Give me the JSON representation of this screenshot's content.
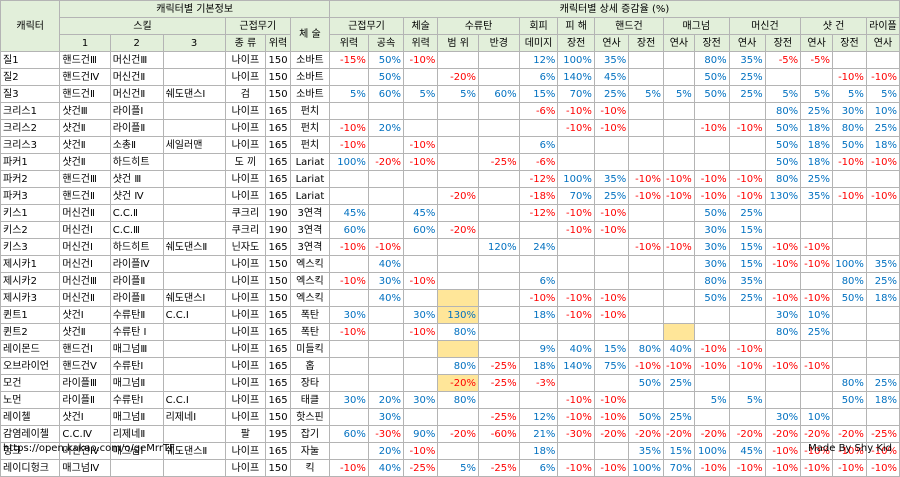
{
  "headers": {
    "basic_group": "캐릭터별 기본정보",
    "detail_group": "캐릭터별 상세 증감율 (%)",
    "character": "캐릭터",
    "skill": "스킬",
    "melee": "근접무기",
    "physique": "체 술",
    "sub_melee": "근접무기",
    "sub_physique": "체술",
    "sub_tumble": "수류탄",
    "sub_evade": "회피",
    "sub_damage": "피 해",
    "sub_handgun": "핸드건",
    "sub_magnum": "매그넘",
    "sub_machinegun": "머신건",
    "sub_shotgun": "샷 건",
    "sub_rifle": "라이플",
    "skill_cols": [
      "1",
      "2",
      "3"
    ],
    "melee_cols": [
      "종 류",
      "위력"
    ],
    "detail_cols": [
      "위력",
      "공속",
      "위력",
      "범 위",
      "반경",
      "데미지",
      "장전",
      "연사",
      "장전",
      "연사",
      "장전",
      "연사",
      "장전",
      "연사",
      "장전",
      "연사"
    ]
  },
  "rows": [
    {
      "name": "질1",
      "s1": "핸드건Ⅲ",
      "s2": "머신건Ⅲ",
      "s3": "",
      "mtype": "나이프",
      "mpow": "150",
      "phys": "소바트",
      "d": [
        "-15%",
        "50%",
        "-10%",
        "",
        "",
        "12%",
        "100%",
        "35%",
        "",
        "",
        "80%",
        "35%",
        "-5%",
        "-5%",
        "",
        ""
      ]
    },
    {
      "name": "질2",
      "s1": "핸드건Ⅳ",
      "s2": "머신건Ⅱ",
      "s3": "",
      "mtype": "나이프",
      "mpow": "150",
      "phys": "소바트",
      "d": [
        "",
        "50%",
        "",
        "-20%",
        "",
        "6%",
        "140%",
        "45%",
        "",
        "",
        "50%",
        "25%",
        "",
        "",
        "-10%",
        "-10%"
      ]
    },
    {
      "name": "질3",
      "s1": "핸드건Ⅱ",
      "s2": "머신건Ⅱ",
      "s3": "쉐도댄스Ⅰ",
      "mtype": "검",
      "mpow": "150",
      "phys": "소바트",
      "d": [
        "5%",
        "60%",
        "5%",
        "5%",
        "60%",
        "15%",
        "70%",
        "25%",
        "5%",
        "5%",
        "50%",
        "25%",
        "5%",
        "5%",
        "5%",
        "5%"
      ]
    },
    {
      "name": "크리스1",
      "s1": "샷건Ⅲ",
      "s2": "라이플Ⅰ",
      "s3": "",
      "mtype": "나이프",
      "mpow": "165",
      "phys": "펀치",
      "d": [
        "",
        "",
        "",
        "",
        "",
        "-6%",
        "-10%",
        "-10%",
        "",
        "",
        "",
        "",
        "80%",
        "25%",
        "30%",
        "10%"
      ]
    },
    {
      "name": "크리스2",
      "s1": "샷건Ⅱ",
      "s2": "라이플Ⅱ",
      "s3": "",
      "mtype": "나이프",
      "mpow": "165",
      "phys": "펀치",
      "d": [
        "-10%",
        "20%",
        "",
        "",
        "",
        "",
        "-10%",
        "-10%",
        "",
        "",
        "-10%",
        "-10%",
        "50%",
        "18%",
        "80%",
        "25%"
      ]
    },
    {
      "name": "크리스3",
      "s1": "샷건Ⅱ",
      "s2": "소총Ⅱ",
      "s3": "세일러맨",
      "mtype": "나이프",
      "mpow": "165",
      "phys": "펀치",
      "d": [
        "-10%",
        "",
        "-10%",
        "",
        "",
        "6%",
        "",
        "",
        "",
        "",
        "",
        "",
        "50%",
        "18%",
        "50%",
        "18%"
      ]
    },
    {
      "name": "파커1",
      "s1": "샷건Ⅱ",
      "s2": "하드히트",
      "s3": "",
      "mtype": "도 끼",
      "mpow": "165",
      "phys": "Lariat",
      "d": [
        "100%",
        "-20%",
        "-10%",
        "",
        "-25%",
        "-6%",
        "",
        "",
        "",
        "",
        "",
        "",
        "50%",
        "18%",
        "-10%",
        "-10%"
      ]
    },
    {
      "name": "파커2",
      "s1": "핸드건Ⅲ",
      "s2": "샷건 Ⅲ",
      "s3": "",
      "mtype": "나이프",
      "mpow": "165",
      "phys": "Lariat",
      "d": [
        "",
        "",
        "",
        "",
        "",
        "-12%",
        "100%",
        "35%",
        "-10%",
        "-10%",
        "-10%",
        "-10%",
        "80%",
        "25%",
        "",
        ""
      ]
    },
    {
      "name": "파커3",
      "s1": "핸드건Ⅱ",
      "s2": "샷건 Ⅳ",
      "s3": "",
      "mtype": "나이프",
      "mpow": "165",
      "phys": "Lariat",
      "d": [
        "",
        "",
        "",
        "-20%",
        "",
        "-18%",
        "70%",
        "25%",
        "-10%",
        "-10%",
        "-10%",
        "-10%",
        "130%",
        "35%",
        "-10%",
        "-10%"
      ]
    },
    {
      "name": "키스1",
      "s1": "머신건Ⅱ",
      "s2": "C.C.Ⅱ",
      "s3": "",
      "mtype": "쿠크리",
      "mpow": "190",
      "phys": "3연격",
      "d": [
        "45%",
        "",
        "45%",
        "",
        "",
        "-12%",
        "-10%",
        "-10%",
        "",
        "",
        "50%",
        "25%",
        "",
        "",
        "",
        ""
      ]
    },
    {
      "name": "키스2",
      "s1": "머신건Ⅰ",
      "s2": "C.C.Ⅲ",
      "s3": "",
      "mtype": "쿠크리",
      "mpow": "190",
      "phys": "3연격",
      "d": [
        "60%",
        "",
        "60%",
        "-20%",
        "",
        "",
        "-10%",
        "-10%",
        "",
        "",
        "30%",
        "15%",
        "",
        "",
        "",
        ""
      ]
    },
    {
      "name": "키스3",
      "s1": "머신건Ⅰ",
      "s2": "하드히트",
      "s3": "쉐도댄스Ⅱ",
      "mtype": "닌자도",
      "mpow": "165",
      "phys": "3연격",
      "d": [
        "-10%",
        "-10%",
        "",
        "",
        "120%",
        "24%",
        "",
        "",
        "-10%",
        "-10%",
        "30%",
        "15%",
        "-10%",
        "-10%",
        "",
        ""
      ]
    },
    {
      "name": "제시카1",
      "s1": "머신건Ⅰ",
      "s2": "라이플Ⅳ",
      "s3": "",
      "mtype": "나이프",
      "mpow": "150",
      "phys": "엑스킥",
      "d": [
        "",
        "40%",
        "",
        "",
        "",
        "",
        "",
        "",
        "",
        "",
        "30%",
        "15%",
        "-10%",
        "-10%",
        "100%",
        "35%"
      ]
    },
    {
      "name": "제시카2",
      "s1": "머신건Ⅲ",
      "s2": "라이플Ⅱ",
      "s3": "",
      "mtype": "나이프",
      "mpow": "150",
      "phys": "엑스킥",
      "d": [
        "-10%",
        "30%",
        "-10%",
        "",
        "",
        "6%",
        "",
        "",
        "",
        "",
        "80%",
        "35%",
        "",
        "",
        "80%",
        "25%"
      ]
    },
    {
      "name": "제시카3",
      "s1": "머신건Ⅱ",
      "s2": "라이플Ⅱ",
      "s3": "쉐도댄스Ⅰ",
      "mtype": "나이프",
      "mpow": "150",
      "phys": "엑스킥",
      "d": [
        "",
        "40%",
        "",
        "",
        "",
        "-10%",
        "-10%",
        "-10%",
        "",
        "",
        "50%",
        "25%",
        "-10%",
        "-10%",
        "50%",
        "18%"
      ]
    },
    {
      "name": "퀸트1",
      "s1": "샷건Ⅰ",
      "s2": "수류탄Ⅱ",
      "s3": "C.C.Ⅰ",
      "mtype": "나이프",
      "mpow": "165",
      "phys": "폭탄",
      "d": [
        "30%",
        "",
        "30%",
        "130%",
        "",
        "18%",
        "-10%",
        "-10%",
        "",
        "",
        "",
        "",
        "30%",
        "10%",
        "",
        ""
      ]
    },
    {
      "name": "퀸트2",
      "s1": "샷건Ⅱ",
      "s2": "수류탄 Ⅰ",
      "s3": "",
      "mtype": "나이프",
      "mpow": "165",
      "phys": "폭탄",
      "d": [
        "-10%",
        "",
        "-10%",
        "80%",
        "",
        "",
        "",
        "",
        "",
        "",
        "",
        "",
        "80%",
        "25%",
        "",
        ""
      ]
    },
    {
      "name": "레이몬드",
      "s1": "핸드건Ⅰ",
      "s2": "매그넘Ⅲ",
      "s3": "",
      "mtype": "나이프",
      "mpow": "165",
      "phys": "미들킥",
      "d": [
        "",
        "",
        "",
        "",
        "",
        "9%",
        "40%",
        "15%",
        "80%",
        "40%",
        "-10%",
        "-10%",
        "",
        "",
        "",
        ""
      ]
    },
    {
      "name": "오브라이언",
      "s1": "핸드건Ⅴ",
      "s2": "수류탄Ⅰ",
      "s3": "",
      "mtype": "나이프",
      "mpow": "165",
      "phys": "홉",
      "d": [
        "",
        "",
        "",
        "80%",
        "-25%",
        "18%",
        "140%",
        "75%",
        "-10%",
        "-10%",
        "-10%",
        "-10%",
        "-10%",
        "-10%",
        "",
        ""
      ]
    },
    {
      "name": "모건",
      "s1": "라이플Ⅲ",
      "s2": "매그넘Ⅱ",
      "s3": "",
      "mtype": "나이프",
      "mpow": "165",
      "phys": "장타",
      "d": [
        "",
        "",
        "",
        "-20%",
        "-25%",
        "-3%",
        "",
        "",
        "50%",
        "25%",
        "",
        "",
        "",
        "",
        "80%",
        "25%"
      ]
    },
    {
      "name": "노먼",
      "s1": "라이플Ⅱ",
      "s2": "수류탄Ⅰ",
      "s3": "C.C.Ⅰ",
      "mtype": "나이프",
      "mpow": "165",
      "phys": "태클",
      "d": [
        "30%",
        "20%",
        "30%",
        "80%",
        "",
        "",
        "-10%",
        "-10%",
        "",
        "",
        "5%",
        "5%",
        "",
        "",
        "50%",
        "18%"
      ]
    },
    {
      "name": "레이첼",
      "s1": "샷건Ⅰ",
      "s2": "매그넘Ⅱ",
      "s3": "리제네Ⅰ",
      "mtype": "나이프",
      "mpow": "150",
      "phys": "핫스핀",
      "d": [
        "",
        "30%",
        "",
        "",
        "-25%",
        "12%",
        "-10%",
        "-10%",
        "50%",
        "25%",
        "",
        "",
        "30%",
        "10%",
        "",
        ""
      ]
    },
    {
      "name": "감염레이첼",
      "s1": "C.C.Ⅳ",
      "s2": "리제네Ⅱ",
      "s3": "",
      "mtype": "팔",
      "mpow": "195",
      "phys": "잡기",
      "d": [
        "60%",
        "-30%",
        "90%",
        "-20%",
        "-60%",
        "21%",
        "-30%",
        "-20%",
        "-20%",
        "-20%",
        "-20%",
        "-20%",
        "-20%",
        "-20%",
        "-20%",
        "-25%"
      ]
    },
    {
      "name": "헝크",
      "s1": "머신건Ⅳ",
      "s2": "매그넘Ⅰ",
      "s3": "쉐도댄스Ⅱ",
      "mtype": "나이프",
      "mpow": "165",
      "phys": "자눌",
      "d": [
        "",
        "20%",
        "-10%",
        "",
        "",
        "18%",
        "",
        "",
        "35%",
        "15%",
        "100%",
        "45%",
        "-10%",
        "-10%",
        "-10%",
        "-10%"
      ]
    },
    {
      "name": "레이디헝크",
      "s1": "매그넘Ⅳ",
      "s2": "",
      "s3": "",
      "mtype": "나이프",
      "mpow": "150",
      "phys": "킥",
      "d": [
        "-10%",
        "40%",
        "-25%",
        "5%",
        "-25%",
        "6%",
        "-10%",
        "-10%",
        "100%",
        "70%",
        "-10%",
        "-10%",
        "-10%",
        "-10%",
        "-10%",
        "-10%"
      ]
    }
  ],
  "highlight_cells": [
    [
      15,
      3
    ],
    [
      16,
      3
    ],
    [
      17,
      9
    ],
    [
      18,
      3
    ],
    [
      20,
      3
    ]
  ],
  "footer": {
    "link": "https://open.kakao.com/o/geMrrTF",
    "credit": "Made By Shy Kid"
  },
  "colors": {
    "header_bg": "#e2efda",
    "negative": "#ff0000",
    "positive": "#0070c0",
    "highlight": "#ffe699"
  }
}
